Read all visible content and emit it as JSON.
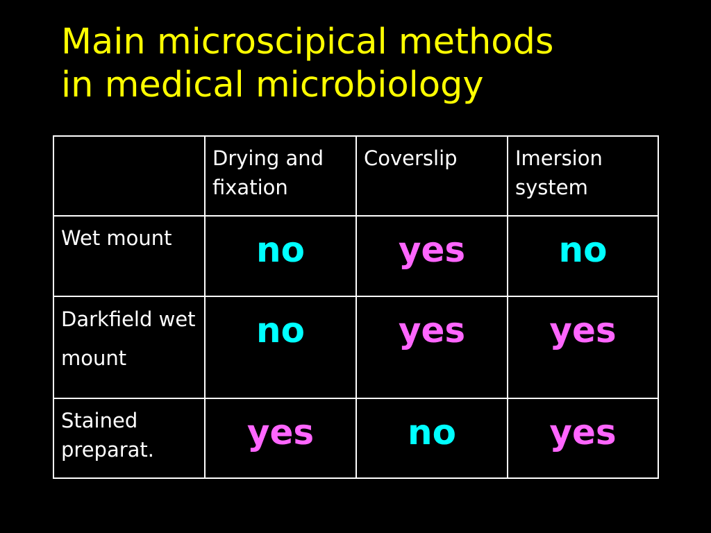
{
  "title": {
    "line1": "Main microscipical methods",
    "line2": "in medical microbiology"
  },
  "table": {
    "headers": [
      "",
      "Drying and fixation",
      "Coverslip",
      "Imersion system"
    ],
    "rows": [
      {
        "label": "Wet mount",
        "values": [
          "no",
          "yes",
          "no"
        ]
      },
      {
        "label": "Darkfield wet mount",
        "values": [
          "no",
          "yes",
          "yes"
        ]
      },
      {
        "label": "Stained preparat.",
        "values": [
          "yes",
          "no",
          "yes"
        ]
      }
    ]
  },
  "colors": {
    "background": "#000000",
    "title": "#ffff00",
    "text": "#ffffff",
    "no": "#00ffff",
    "yes": "#ff66ff"
  }
}
